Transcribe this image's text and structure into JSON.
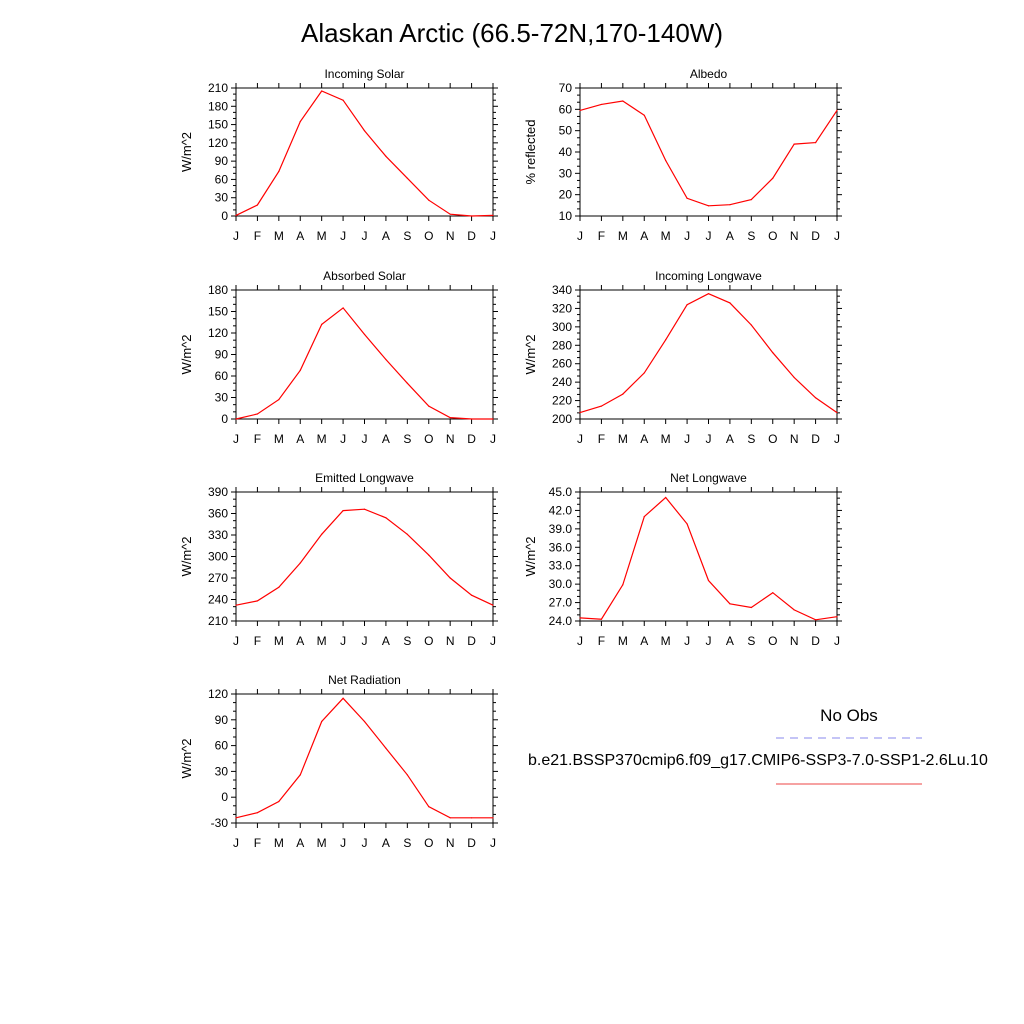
{
  "figure": {
    "title": "Alaskan Arctic (66.5-72N,170-140W)"
  },
  "legend": {
    "title": "No Obs",
    "obs_color": "#8888ee",
    "model_label": "b.e21.BSSP370cmip6.f09_g17.CMIP6-SSP3-7.0-SSP1-2.6Lu.10",
    "model_color": "#ee4444"
  },
  "line_color": "#ff0000",
  "chart_data": [
    {
      "type": "line",
      "title": "Incoming Solar",
      "ylabel": "W/m^2",
      "categories": [
        "J",
        "F",
        "M",
        "A",
        "M",
        "J",
        "J",
        "A",
        "S",
        "O",
        "N",
        "D",
        "J"
      ],
      "values": [
        1,
        18,
        73,
        155,
        205,
        190,
        140,
        98,
        62,
        26,
        3,
        0,
        1
      ],
      "ylim": [
        0,
        210
      ],
      "yticks": [
        "0",
        "30",
        "60",
        "90",
        "120",
        "150",
        "180",
        "210"
      ]
    },
    {
      "type": "line",
      "title": "Albedo",
      "ylabel": "% reflected",
      "categories": [
        "J",
        "F",
        "M",
        "A",
        "M",
        "J",
        "J",
        "A",
        "S",
        "O",
        "N",
        "D",
        "J"
      ],
      "values": [
        59.5,
        62.3,
        63.9,
        57.2,
        36.0,
        18.3,
        14.8,
        15.3,
        17.7,
        27.7,
        43.7,
        44.4,
        59.5
      ],
      "ylim": [
        10,
        70
      ],
      "yticks": [
        "10",
        "20",
        "30",
        "40",
        "50",
        "60",
        "70"
      ]
    },
    {
      "type": "line",
      "title": "Absorbed Solar",
      "ylabel": "W/m^2",
      "categories": [
        "J",
        "F",
        "M",
        "A",
        "M",
        "J",
        "J",
        "A",
        "S",
        "O",
        "N",
        "D",
        "J"
      ],
      "values": [
        0,
        7,
        27,
        68,
        132,
        155,
        118,
        83,
        50,
        18,
        2,
        0,
        0
      ],
      "ylim": [
        0,
        180
      ],
      "yticks": [
        "0",
        "30",
        "60",
        "90",
        "120",
        "150",
        "180"
      ]
    },
    {
      "type": "line",
      "title": "Incoming Longwave",
      "ylabel": "W/m^2",
      "categories": [
        "J",
        "F",
        "M",
        "A",
        "M",
        "J",
        "J",
        "A",
        "S",
        "O",
        "N",
        "D",
        "J"
      ],
      "values": [
        207,
        214,
        227,
        250,
        286,
        324,
        336,
        326,
        302,
        272,
        245,
        223,
        207
      ],
      "ylim": [
        200,
        340
      ],
      "yticks": [
        "200",
        "220",
        "240",
        "260",
        "280",
        "300",
        "320",
        "340"
      ]
    },
    {
      "type": "line",
      "title": "Emitted Longwave",
      "ylabel": "W/m^2",
      "categories": [
        "J",
        "F",
        "M",
        "A",
        "M",
        "J",
        "J",
        "A",
        "S",
        "O",
        "N",
        "D",
        "J"
      ],
      "values": [
        232,
        238,
        257,
        291,
        331,
        364,
        366,
        354,
        331,
        302,
        270,
        246,
        232
      ],
      "ylim": [
        210,
        390
      ],
      "yticks": [
        "210",
        "240",
        "270",
        "300",
        "330",
        "360",
        "390"
      ]
    },
    {
      "type": "line",
      "title": "Net Longwave",
      "ylabel": "W/m^2",
      "categories": [
        "J",
        "F",
        "M",
        "A",
        "M",
        "J",
        "J",
        "A",
        "S",
        "O",
        "N",
        "D",
        "J"
      ],
      "values": [
        24.5,
        24.3,
        29.9,
        41.0,
        44.1,
        39.8,
        30.6,
        26.8,
        26.2,
        28.6,
        25.8,
        24.2,
        24.7
      ],
      "ylim": [
        24.0,
        45.0
      ],
      "yticks": [
        "24.0",
        "27.0",
        "30.0",
        "33.0",
        "36.0",
        "39.0",
        "42.0",
        "45.0"
      ]
    },
    {
      "type": "line",
      "title": "Net Radiation",
      "ylabel": "W/m^2",
      "categories": [
        "J",
        "F",
        "M",
        "A",
        "M",
        "J",
        "J",
        "A",
        "S",
        "O",
        "N",
        "D",
        "J"
      ],
      "values": [
        -24,
        -18,
        -5,
        26,
        88,
        115,
        88,
        57,
        26,
        -11,
        -24,
        -24,
        -24
      ],
      "ylim": [
        -30,
        120
      ],
      "yticks": [
        "-30",
        "0",
        "30",
        "60",
        "90",
        "120"
      ]
    }
  ]
}
